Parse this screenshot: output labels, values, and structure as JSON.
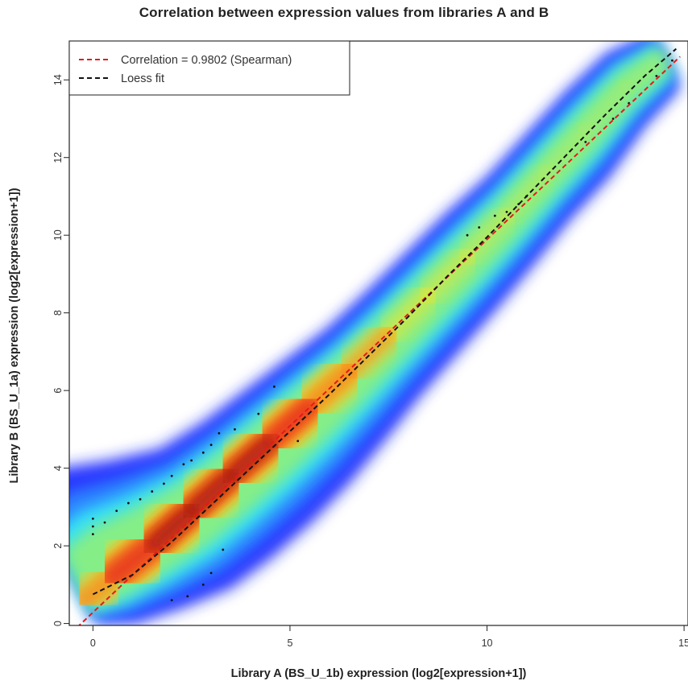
{
  "chart_data": {
    "type": "scatter",
    "title": "Correlation between expression values from libraries A and B",
    "xlabel": "Library A (BS_U_1b) expression (log2[expression+1])",
    "ylabel": "Library B (BS_U_1a) expression (log2[expression+1])",
    "xlim": [
      -0.6,
      15.1
    ],
    "ylim": [
      -0.05,
      15.0
    ],
    "x_ticks": [
      0,
      5,
      10,
      15
    ],
    "y_ticks": [
      0,
      2,
      4,
      6,
      8,
      10,
      12,
      14
    ],
    "x_tick_labels": [
      "0",
      "5",
      "10",
      "15"
    ],
    "y_tick_labels": [
      "0",
      "2",
      "4",
      "6",
      "8",
      "10",
      "12",
      "14"
    ],
    "legend": {
      "position": "top-left",
      "entries": [
        {
          "label": "Correlation = 0.9802 (Spearman)",
          "color": "#e41a1c",
          "style": "dashed"
        },
        {
          "label": "Loess fit",
          "color": "#111111",
          "style": "dashed"
        }
      ]
    },
    "correlation": {
      "value": 0.9802,
      "method": "Spearman"
    },
    "series": [
      {
        "name": "Correlation = 0.9802 (Spearman)",
        "kind": "line",
        "color": "#e41a1c",
        "x": [
          -0.4,
          14.9
        ],
        "y": [
          -0.1,
          14.6
        ]
      },
      {
        "name": "Loess fit",
        "kind": "line",
        "color": "#111111",
        "x": [
          0.0,
          1.0,
          2.0,
          3.0,
          4.0,
          5.0,
          6.0,
          7.0,
          8.0,
          9.0,
          10.0,
          11.0,
          12.0,
          13.0,
          14.0,
          14.8
        ],
        "y": [
          0.75,
          1.25,
          2.1,
          3.05,
          4.0,
          4.95,
          5.9,
          6.9,
          7.9,
          8.95,
          9.95,
          11.0,
          12.05,
          13.1,
          14.1,
          14.8
        ]
      }
    ],
    "density_ridge": {
      "x": [
        -0.2,
        0.5,
        1.5,
        2.5,
        3.5,
        4.5,
        5.5,
        6.5,
        7.5,
        8.5,
        9.5,
        10.5,
        11.5,
        12.5,
        13.5,
        14.5
      ],
      "y": [
        0.6,
        1.2,
        2.0,
        2.9,
        3.8,
        4.7,
        5.6,
        6.5,
        7.45,
        8.45,
        9.45,
        10.5,
        11.6,
        12.7,
        13.8,
        14.6
      ],
      "width_lower": [
        0.6,
        1.2,
        1.6,
        2.0,
        2.1,
        2.1,
        2.0,
        1.8,
        1.6,
        1.5,
        1.4,
        1.3,
        1.2,
        1.2,
        1.0,
        0.8
      ],
      "width_upper": [
        2.8,
        2.8,
        2.2,
        1.6,
        1.4,
        1.3,
        1.2,
        1.1,
        1.1,
        1.1,
        1.1,
        1.0,
        1.0,
        1.0,
        0.9,
        0.6
      ],
      "intensity": [
        0.55,
        0.7,
        0.9,
        1.0,
        1.0,
        0.95,
        0.8,
        0.6,
        0.45,
        0.4,
        0.35,
        0.25,
        0.2,
        0.15,
        0.12,
        0.1
      ]
    },
    "outlier_points": {
      "x": [
        0.0,
        0.0,
        0.0,
        0.3,
        0.6,
        0.9,
        1.2,
        1.5,
        1.8,
        2.0,
        2.3,
        2.5,
        2.8,
        3.0,
        3.2,
        3.6,
        4.2,
        4.6,
        5.2,
        2.0,
        2.4,
        2.8,
        3.0,
        3.3,
        9.5,
        9.8,
        10.2,
        10.5,
        10.8,
        11.0,
        12.5,
        13.2,
        13.6,
        14.3,
        14.7
      ],
      "y": [
        2.3,
        2.5,
        2.7,
        2.6,
        2.9,
        3.1,
        3.2,
        3.4,
        3.6,
        3.8,
        4.1,
        4.2,
        4.4,
        4.6,
        4.9,
        5.0,
        5.4,
        6.1,
        4.7,
        0.6,
        0.7,
        1.0,
        1.3,
        1.9,
        10.0,
        10.2,
        10.5,
        10.6,
        10.8,
        11.0,
        12.4,
        13.0,
        13.4,
        14.1,
        14.5
      ]
    },
    "grid": false,
    "colors": {
      "hot": "#b22a0a",
      "mid": "#f5d620",
      "cool": "#2fe0ff",
      "edge": "#1a3cff"
    }
  }
}
